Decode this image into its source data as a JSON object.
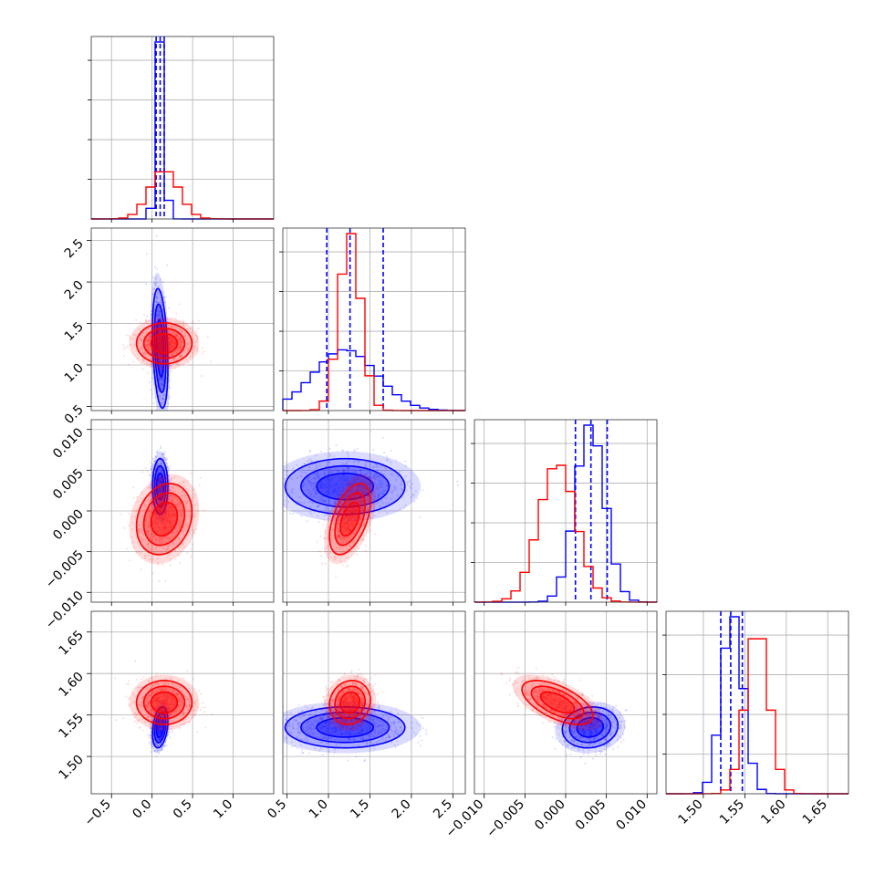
{
  "chart_data": {
    "type": "scatter",
    "subtype": "corner-plot",
    "grid": true,
    "legend": "none",
    "colors": {
      "series_a": "#0000ff",
      "series_b": "#ff0000"
    },
    "parameters": [
      {
        "range": [
          -0.75,
          1.5
        ],
        "ticks": [
          -0.5,
          0.0,
          0.5,
          1.0
        ],
        "tick_labels": [
          "−0.5",
          "0.0",
          "0.5",
          "1.0"
        ]
      },
      {
        "range": [
          0.45,
          2.65
        ],
        "ticks": [
          0.5,
          1.0,
          1.5,
          2.0,
          2.5
        ],
        "tick_labels": [
          "0.5",
          "1.0",
          "1.5",
          "2.0",
          "2.5"
        ]
      },
      {
        "range": [
          -0.0112,
          0.0112
        ],
        "ticks": [
          -0.01,
          -0.005,
          0.0,
          0.005,
          0.01
        ],
        "tick_labels": [
          "−0.010",
          "−0.005",
          "0.000",
          "0.005",
          "0.010"
        ]
      },
      {
        "range": [
          1.455,
          1.675
        ],
        "ticks": [
          1.5,
          1.55,
          1.6,
          1.65
        ],
        "tick_labels": [
          "1.50",
          "1.55",
          "1.60",
          "1.65"
        ]
      }
    ],
    "series": [
      {
        "color": "#0000ff",
        "means": [
          0.1,
          1.2,
          0.003,
          1.535
        ],
        "sds": [
          0.05,
          0.38,
          0.0018,
          0.013
        ],
        "correlations": {
          "1-0": -0.3,
          "2-0": 0.0,
          "2-1": 0.0,
          "3-0": 0.3,
          "3-1": 0.0,
          "3-2": 0.1
        },
        "quantiles": [
          [
            0.05,
            0.1,
            0.15
          ],
          [
            0.98,
            1.26,
            1.66
          ],
          [
            0.0012,
            0.0031,
            0.0051
          ],
          [
            1.521,
            1.533,
            1.547
          ]
        ]
      },
      {
        "color": "#ff0000",
        "means": [
          0.15,
          1.26,
          -0.001,
          1.565
        ],
        "sds": [
          0.18,
          0.13,
          0.0023,
          0.014
        ],
        "correlations": {
          "1-0": 0.0,
          "2-0": 0.2,
          "2-1": 0.5,
          "3-0": 0.0,
          "3-1": 0.1,
          "3-2": -0.6
        },
        "quantiles": []
      }
    ]
  }
}
